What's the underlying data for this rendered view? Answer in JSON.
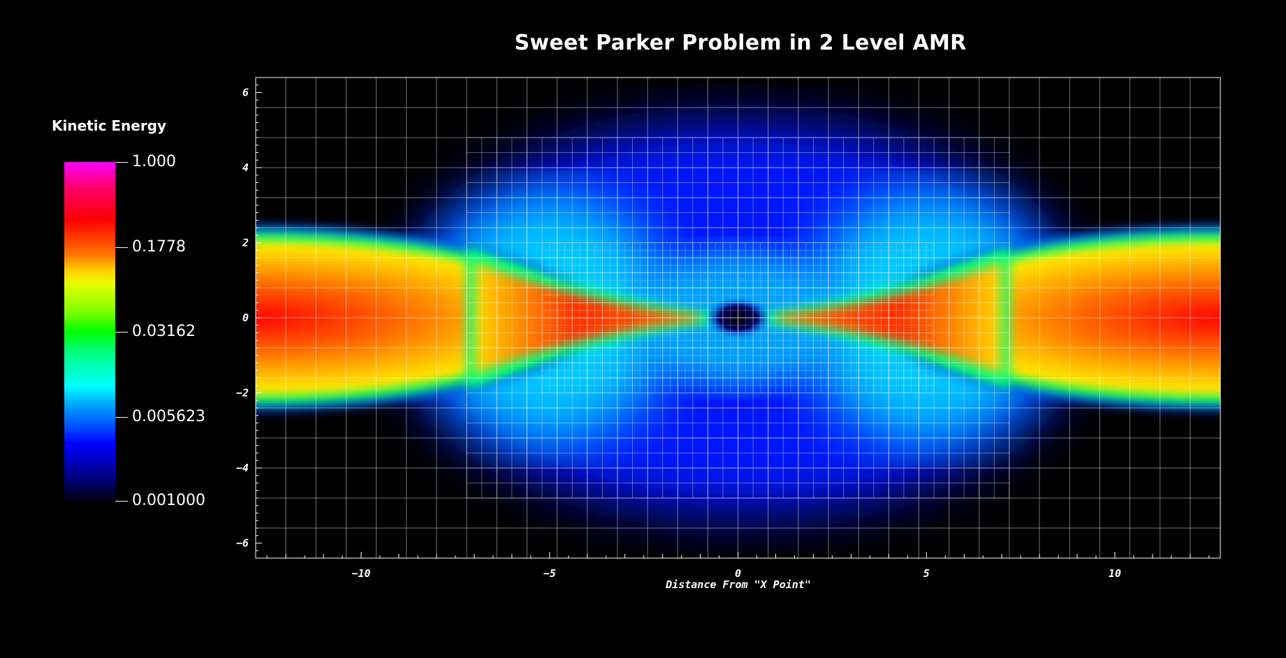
{
  "chart_data": {
    "type": "heatmap",
    "title": "Sweet Parker Problem in 2 Level AMR",
    "xlabel": "Distance From \"X Point\"",
    "ylabel": "",
    "xlim": [
      -12.8,
      12.8
    ],
    "ylim": [
      -6.4,
      6.4
    ],
    "x_ticks": [
      -10,
      -5,
      0,
      5,
      10
    ],
    "y_ticks": [
      -6,
      -4,
      -2,
      0,
      2,
      4,
      6
    ],
    "colorbar": {
      "label": "Kinetic Energy",
      "scale": "log",
      "range": [
        0.001,
        1.0
      ],
      "tick_labels": [
        "1.000",
        "0.1778",
        "0.03162",
        "0.005623",
        "0.001000"
      ]
    },
    "refinement_levels": [
      {
        "level": 1,
        "x_range": [
          -12.8,
          12.8
        ],
        "y_range": [
          -6.4,
          6.4
        ]
      },
      {
        "level": 2,
        "x_range": [
          -7.2,
          7.2
        ],
        "y_range": [
          -4.8,
          4.8
        ]
      }
    ],
    "grid": true
  }
}
